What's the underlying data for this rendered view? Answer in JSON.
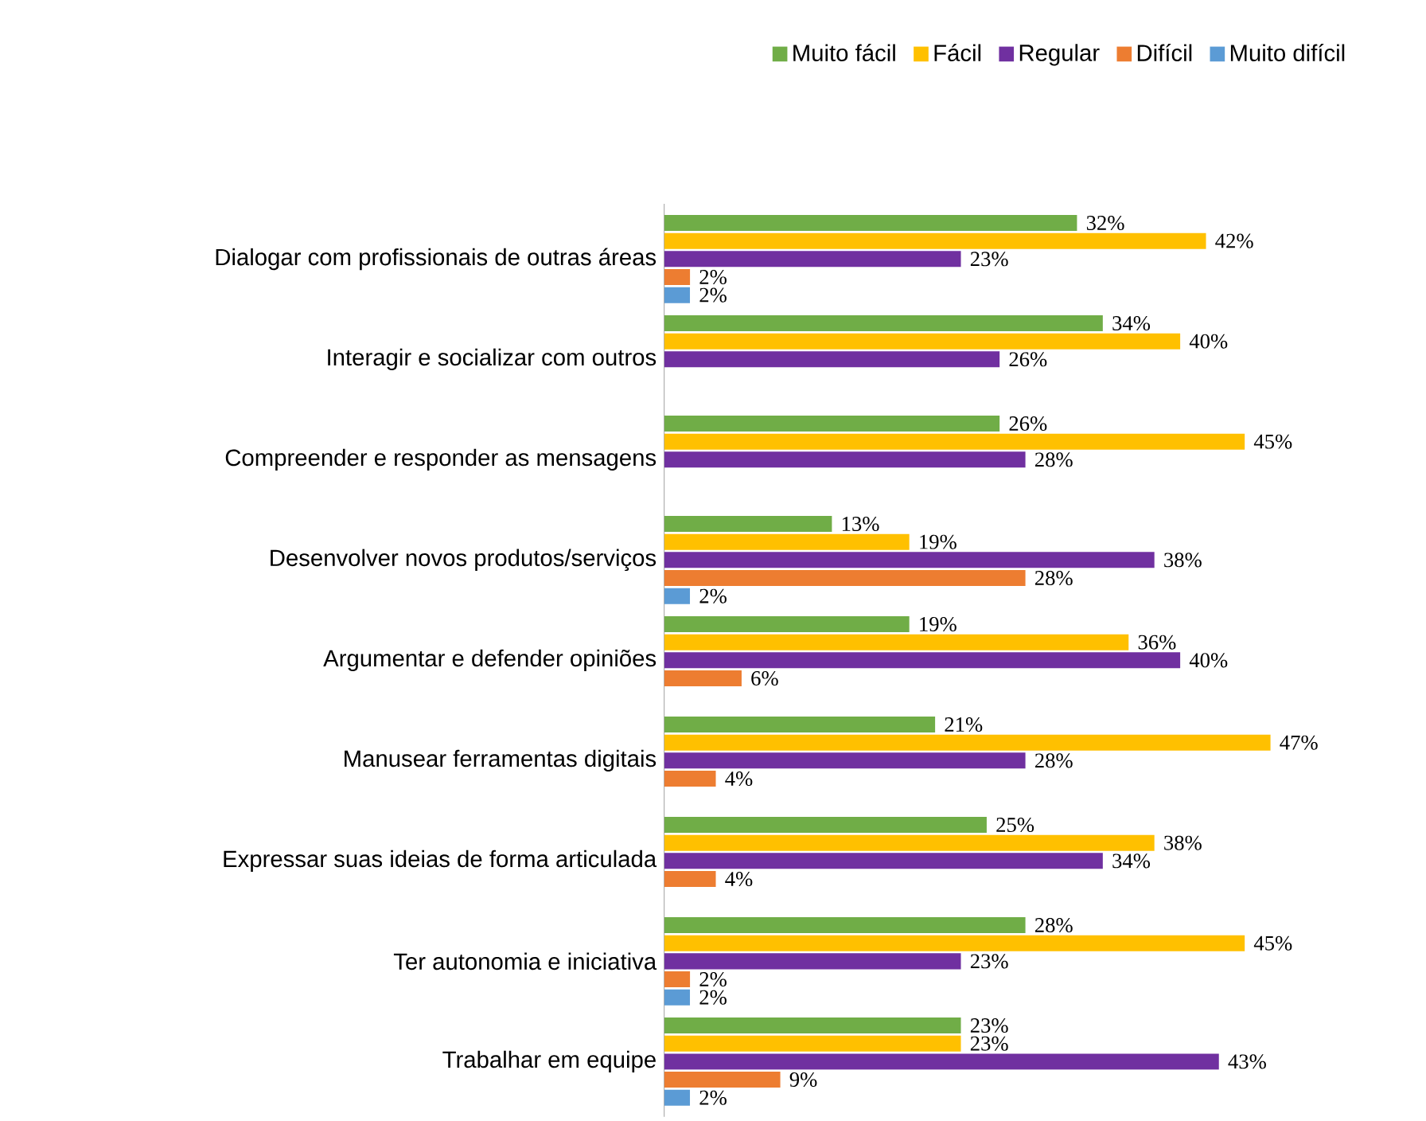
{
  "chart_data": {
    "type": "bar",
    "orientation": "horizontal",
    "legend": "top right",
    "categories": [
      "Dialogar com profissionais de outras áreas",
      "Interagir e socializar com outros",
      "Compreender e responder as mensagens",
      "Desenvolver novos produtos/serviços",
      "Argumentar e defender opiniões",
      "Manusear ferramentas digitais",
      "Expressar suas ideias de forma articulada",
      "Ter autonomia e iniciativa",
      "Trabalhar em equipe"
    ],
    "series": [
      {
        "name": "Muito fácil",
        "color": "#70ad47",
        "values": [
          32,
          34,
          26,
          13,
          19,
          21,
          25,
          28,
          23
        ],
        "value_labels": [
          "32%",
          "34%",
          "26%",
          "13%",
          "19%",
          "21%",
          "25%",
          "28%",
          "23%"
        ]
      },
      {
        "name": "Fácil",
        "color": "#ffc000",
        "values": [
          42,
          40,
          45,
          19,
          36,
          47,
          38,
          45,
          23
        ],
        "value_labels": [
          "42%",
          "40%",
          "45%",
          "19%",
          "36%",
          "47%",
          "38%",
          "45%",
          "23%"
        ]
      },
      {
        "name": "Regular",
        "color": "#7030a0",
        "values": [
          23,
          26,
          28,
          38,
          40,
          28,
          34,
          23,
          43
        ],
        "value_labels": [
          "23%",
          "26%",
          "28%",
          "38%",
          "40%",
          "28%",
          "34%",
          "23%",
          "43%"
        ]
      },
      {
        "name": "Difícil",
        "color": "#ed7d31",
        "values": [
          2,
          null,
          null,
          28,
          6,
          4,
          4,
          2,
          9
        ],
        "value_labels": [
          "2%",
          null,
          null,
          "28%",
          "6%",
          "4%",
          "4%",
          "2%",
          "9%"
        ]
      },
      {
        "name": "Muito difícil",
        "color": "#5b9bd5",
        "values": [
          2,
          null,
          null,
          2,
          null,
          null,
          null,
          2,
          2
        ],
        "value_labels": [
          "2%",
          null,
          null,
          "2%",
          null,
          null,
          null,
          "2%",
          "2%"
        ]
      }
    ]
  }
}
